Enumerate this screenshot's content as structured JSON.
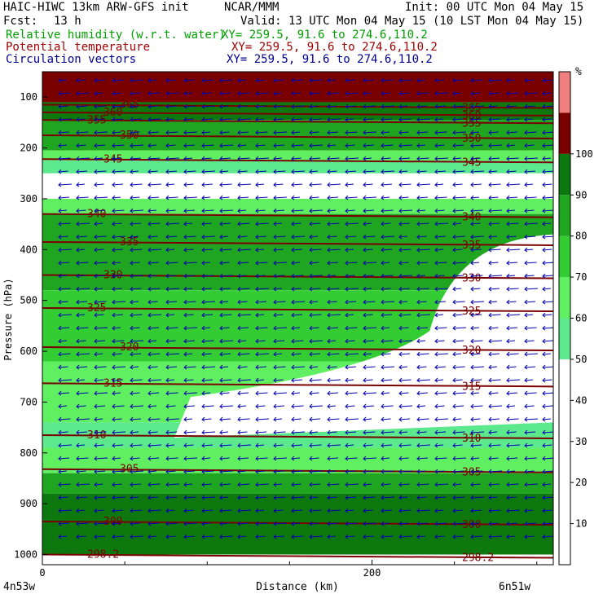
{
  "header": {
    "model": "HAIC-HIWC 13km ARW-GFS init",
    "center": "NCAR/MMM",
    "init": "Init: 00 UTC Mon 04 May 15",
    "fcst_label": "Fcst:",
    "fcst_value": "13 h",
    "valid": "Valid: 13 UTC Mon 04 May 15 (10 LST Mon 04 May 15)",
    "fields": [
      {
        "name": "Relative humidity (w.r.t. water)",
        "xy": "XY= 259.5, 91.6 to 274.6,110.2",
        "color": "#00a000"
      },
      {
        "name": "Potential temperature",
        "xy": "XY= 259.5, 91.6 to 274.6,110.2",
        "color": "#a00000"
      },
      {
        "name": "Circulation vectors",
        "xy": "XY= 259.5, 91.6 to 274.6,110.2",
        "color": "#000090"
      }
    ]
  },
  "chart_data": {
    "type": "heatmap",
    "title": "",
    "xlabel": "Distance (km)",
    "ylabel": "Pressure (hPa)",
    "x_ticks": [
      0,
      200
    ],
    "xlim": [
      0,
      310
    ],
    "y_ticks": [
      100,
      200,
      300,
      400,
      500,
      600,
      700,
      800,
      900,
      1000
    ],
    "ylim": [
      50,
      1020
    ],
    "left_location": "4n53w",
    "right_location": "6n51w",
    "colorbar": {
      "unit": "%",
      "ticks": [
        10,
        20,
        30,
        40,
        50,
        60,
        70,
        80,
        90,
        100
      ],
      "bins": [
        {
          "from": 50,
          "to": 60,
          "color": "#5ce88c"
        },
        {
          "from": 60,
          "to": 70,
          "color": "#60ef60"
        },
        {
          "from": 70,
          "to": 80,
          "color": "#33cc33"
        },
        {
          "from": 80,
          "to": 90,
          "color": "#1fa51f"
        },
        {
          "from": 90,
          "to": 100,
          "color": "#0d780d"
        },
        {
          "from": 100,
          "to": 110,
          "color": "#7a0000"
        },
        {
          "from": 110,
          "to": 120,
          "color": "#f08080"
        }
      ]
    },
    "rh_bands": [
      {
        "top": 50,
        "bottom": 110,
        "level": 100
      },
      {
        "top": 110,
        "bottom": 145,
        "level": 90
      },
      {
        "top": 145,
        "bottom": 205,
        "level": 80
      },
      {
        "top": 205,
        "bottom": 225,
        "level": 60
      },
      {
        "top": 225,
        "bottom": 250,
        "level": 50
      },
      {
        "top": 250,
        "bottom": 300,
        "level": 0
      },
      {
        "top": 300,
        "bottom": 330,
        "level": 60
      },
      {
        "top": 330,
        "bottom": 480,
        "level": 80
      },
      {
        "top": 480,
        "bottom": 620,
        "level": 70
      },
      {
        "top": 620,
        "bottom": 740,
        "level": 60
      },
      {
        "top": 740,
        "bottom": 790,
        "level": 50
      },
      {
        "top": 790,
        "bottom": 840,
        "level": 60
      },
      {
        "top": 840,
        "bottom": 880,
        "level": 80
      },
      {
        "top": 880,
        "bottom": 1000,
        "level": 90
      },
      {
        "top": 1000,
        "bottom": 1020,
        "level": 0
      }
    ],
    "theta_contours": [
      {
        "value": 298.2,
        "p": 1000
      },
      {
        "value": 300,
        "p": 935
      },
      {
        "value": 305,
        "p": 832
      },
      {
        "value": 310,
        "p": 765
      },
      {
        "value": 315,
        "p": 663
      },
      {
        "value": 320,
        "p": 592
      },
      {
        "value": 325,
        "p": 515
      },
      {
        "value": 330,
        "p": 450
      },
      {
        "value": 335,
        "p": 385
      },
      {
        "value": 340,
        "p": 330
      },
      {
        "value": 345,
        "p": 222
      },
      {
        "value": 350,
        "p": 175
      },
      {
        "value": 355,
        "p": 145
      },
      {
        "value": 360,
        "p": 130
      },
      {
        "value": 365,
        "p": 115
      }
    ]
  }
}
